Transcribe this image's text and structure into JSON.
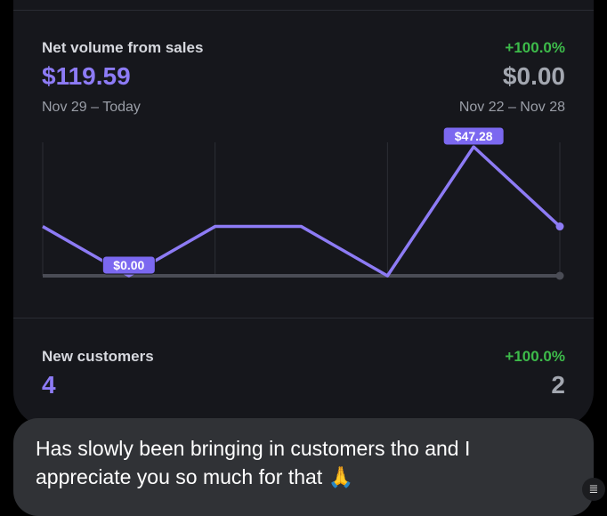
{
  "net_volume": {
    "title": "Net volume from sales",
    "change": "+100.0%",
    "current_value": "$119.59",
    "previous_value": "$0.00",
    "current_range": "Nov 29 – Today",
    "previous_range": "Nov 22 – Nov 28"
  },
  "new_customers": {
    "title": "New customers",
    "change": "+100.0%",
    "current_value": "4",
    "previous_value": "2"
  },
  "chart_data": {
    "type": "line",
    "series": [
      {
        "values": [
          18.08,
          0,
          18.08,
          18.08,
          0,
          47.28,
          18.08
        ],
        "color": "#8d7bf5"
      },
      {
        "values": [
          0,
          0,
          0,
          0,
          0,
          0,
          0
        ],
        "color": "#4a4c55"
      }
    ],
    "ylim": [
      0,
      47.28
    ],
    "grid": true,
    "annotations": [
      {
        "label": "$47.28",
        "index": 5
      },
      {
        "label": "$0.00",
        "index": 1
      }
    ]
  },
  "message": {
    "text": "Has slowly been bringing in customers tho and I appreciate you so much for that 🙏"
  },
  "icons": {
    "ocr": "text-scan-icon"
  }
}
